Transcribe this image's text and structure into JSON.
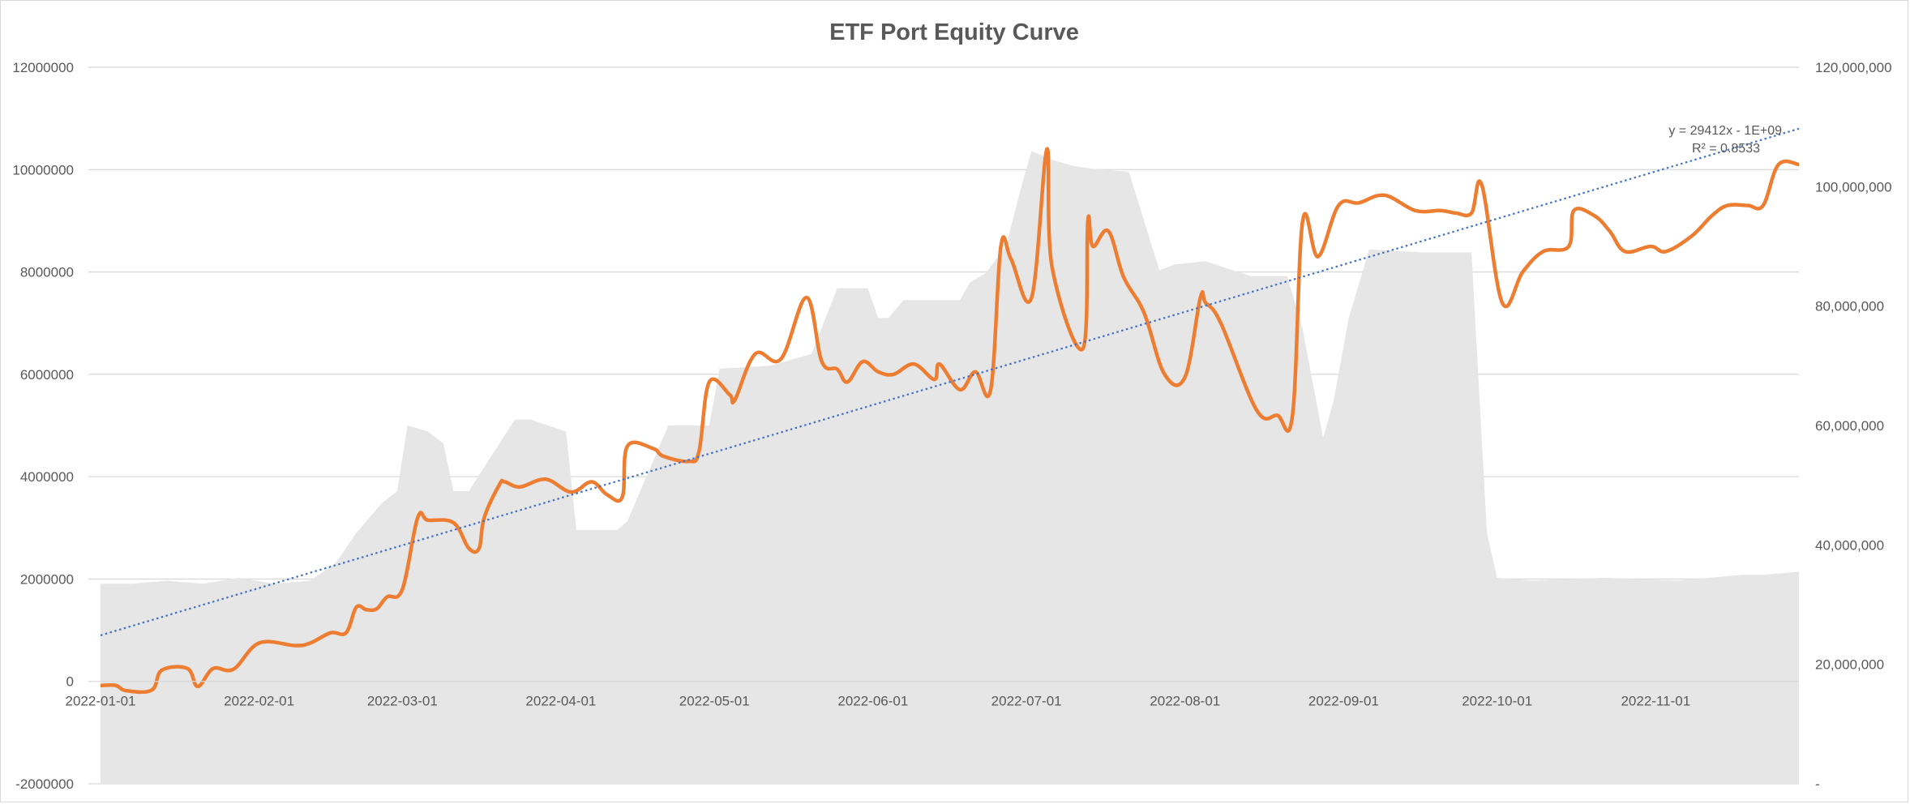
{
  "chart_data": {
    "type": "line",
    "title": "ETF Port Equity Curve",
    "xlabel": "",
    "ylabel": "",
    "x_tick_labels": [
      "2022-01-01",
      "2022-02-01",
      "2022-03-01",
      "2022-04-01",
      "2022-05-01",
      "2022-06-01",
      "2022-07-01",
      "2022-08-01",
      "2022-09-01",
      "2022-10-01",
      "2022-11-01"
    ],
    "x_range": [
      "2022-01-01",
      "2022-11-29"
    ],
    "left_axis": {
      "ylim": [
        -2000000,
        12000000
      ],
      "tick_labels": [
        "-2000000",
        "0",
        "2000000",
        "4000000",
        "6000000",
        "8000000",
        "10000000",
        "12000000"
      ],
      "ticks": [
        -2000000,
        0,
        2000000,
        4000000,
        6000000,
        8000000,
        10000000,
        12000000
      ]
    },
    "right_axis": {
      "ylim": [
        0,
        120000000
      ],
      "tick_labels": [
        "-",
        "20,000,000",
        "40,000,000",
        "60,000,000",
        "80,000,000",
        "100,000,000",
        "120,000,000"
      ],
      "ticks": [
        0,
        20000000,
        40000000,
        60000000,
        80000000,
        100000000,
        120000000
      ]
    },
    "grid": true,
    "legend": "none",
    "colors": {
      "equity": "#ed7d31",
      "area": "#e7e6e6",
      "trend": "#4472c4",
      "grid": "#d9d9d9",
      "text": "#595959"
    },
    "series": [
      {
        "type": "area",
        "axis": "right",
        "x": [
          "2022-01-01",
          "2022-01-07",
          "2022-01-14",
          "2022-01-21",
          "2022-01-28",
          "2022-02-04",
          "2022-02-11",
          "2022-02-16",
          "2022-02-20",
          "2022-02-23",
          "2022-02-25",
          "2022-02-28",
          "2022-03-02",
          "2022-03-06",
          "2022-03-09",
          "2022-03-11",
          "2022-03-14",
          "2022-03-23",
          "2022-03-26",
          "2022-04-02",
          "2022-04-04",
          "2022-04-12",
          "2022-04-14",
          "2022-04-22",
          "2022-04-30",
          "2022-05-02",
          "2022-05-12",
          "2022-05-20",
          "2022-05-25",
          "2022-05-31",
          "2022-06-02",
          "2022-06-04",
          "2022-06-07",
          "2022-06-18",
          "2022-06-20",
          "2022-06-23",
          "2022-06-27",
          "2022-06-30",
          "2022-07-02",
          "2022-07-06",
          "2022-07-10",
          "2022-07-14",
          "2022-07-21",
          "2022-07-27",
          "2022-07-30",
          "2022-08-05",
          "2022-08-14",
          "2022-08-21",
          "2022-08-24",
          "2022-08-28",
          "2022-08-30",
          "2022-09-02",
          "2022-09-06",
          "2022-09-16",
          "2022-09-26",
          "2022-09-29",
          "2022-10-01",
          "2022-10-08",
          "2022-10-22",
          "2022-11-05",
          "2022-11-18",
          "2022-11-22",
          "2022-11-29"
        ],
        "values": [
          33500000,
          33500000,
          34000000,
          33500000,
          34500000,
          33500000,
          34000000,
          37000000,
          42000000,
          45000000,
          47000000,
          49000000,
          60000000,
          59000000,
          57000000,
          49000000,
          49000000,
          61000000,
          61000000,
          59000000,
          42500000,
          42500000,
          44000000,
          60000000,
          60000000,
          69500000,
          70000000,
          72000000,
          83000000,
          83000000,
          78000000,
          78000000,
          81000000,
          81000000,
          84000000,
          85500000,
          90000000,
          100000000,
          106000000,
          104500000,
          103500000,
          103000000,
          102500000,
          86000000,
          87000000,
          87500000,
          85000000,
          85000000,
          76000000,
          58000000,
          64000000,
          78000000,
          89500000,
          89000000,
          89000000,
          42000000,
          34500000,
          34000000,
          34500000,
          34000000,
          35000000,
          35000000,
          35500000
        ]
      },
      {
        "type": "line",
        "axis": "left",
        "name": "",
        "x": [
          "2022-01-01",
          "2022-01-04",
          "2022-01-06",
          "2022-01-11",
          "2022-01-13",
          "2022-01-18",
          "2022-01-20",
          "2022-01-23",
          "2022-01-27",
          "2022-02-01",
          "2022-02-08",
          "2022-02-11",
          "2022-02-15",
          "2022-02-18",
          "2022-02-20",
          "2022-02-22",
          "2022-02-24",
          "2022-02-26",
          "2022-03-01",
          "2022-03-04",
          "2022-03-06",
          "2022-03-11",
          "2022-03-14",
          "2022-03-16",
          "2022-03-17",
          "2022-03-20",
          "2022-03-21",
          "2022-03-24",
          "2022-03-29",
          "2022-04-03",
          "2022-04-07",
          "2022-04-10",
          "2022-04-13",
          "2022-04-14",
          "2022-04-19",
          "2022-04-21",
          "2022-04-26",
          "2022-04-28",
          "2022-04-30",
          "2022-05-04",
          "2022-05-05",
          "2022-05-09",
          "2022-05-14",
          "2022-05-19",
          "2022-05-22",
          "2022-05-25",
          "2022-05-27",
          "2022-05-30",
          "2022-06-02",
          "2022-06-05",
          "2022-06-09",
          "2022-06-13",
          "2022-06-14",
          "2022-06-18",
          "2022-06-21",
          "2022-06-24",
          "2022-06-26",
          "2022-06-28",
          "2022-07-02",
          "2022-07-05",
          "2022-07-06",
          "2022-07-12",
          "2022-07-13",
          "2022-07-14",
          "2022-07-17",
          "2022-07-20",
          "2022-07-24",
          "2022-07-28",
          "2022-08-01",
          "2022-08-04",
          "2022-08-05",
          "2022-08-08",
          "2022-08-15",
          "2022-08-19",
          "2022-08-22",
          "2022-08-24",
          "2022-08-27",
          "2022-08-31",
          "2022-09-04",
          "2022-09-09",
          "2022-09-15",
          "2022-09-20",
          "2022-09-23",
          "2022-09-26",
          "2022-09-28",
          "2022-10-02",
          "2022-10-06",
          "2022-10-10",
          "2022-10-15",
          "2022-10-16",
          "2022-10-20",
          "2022-10-23",
          "2022-10-26",
          "2022-10-31",
          "2022-11-03",
          "2022-11-08",
          "2022-11-12",
          "2022-11-15",
          "2022-11-19",
          "2022-11-22",
          "2022-11-25",
          "2022-11-29"
        ],
        "values": [
          -80000,
          -80000,
          -180000,
          -170000,
          220000,
          250000,
          -100000,
          250000,
          240000,
          750000,
          700000,
          750000,
          950000,
          950000,
          1450000,
          1400000,
          1420000,
          1650000,
          1800000,
          3200000,
          3150000,
          3100000,
          2600000,
          2600000,
          3200000,
          3850000,
          3900000,
          3800000,
          3950000,
          3700000,
          3900000,
          3650000,
          3600000,
          4600000,
          4550000,
          4400000,
          4300000,
          4500000,
          5850000,
          5600000,
          5500000,
          6400000,
          6300000,
          7500000,
          6250000,
          6100000,
          5850000,
          6250000,
          6050000,
          6000000,
          6200000,
          5900000,
          6200000,
          5700000,
          6050000,
          5700000,
          8500000,
          8250000,
          7500000,
          10400000,
          8100000,
          6500000,
          9000000,
          8500000,
          8800000,
          7900000,
          7200000,
          6000000,
          5950000,
          7500000,
          7400000,
          7000000,
          5300000,
          5200000,
          5200000,
          9000000,
          8300000,
          9300000,
          9350000,
          9500000,
          9200000,
          9200000,
          9150000,
          9150000,
          9700000,
          7400000,
          8000000,
          8400000,
          8500000,
          9200000,
          9100000,
          8800000,
          8400000,
          8500000,
          8400000,
          8700000,
          9100000,
          9300000,
          9300000,
          9300000,
          10100000,
          10100000
        ]
      }
    ],
    "trendline": {
      "type": "linear",
      "equation": "y = 29412x - 1E+09",
      "r_squared": "R² = 0.8533",
      "start": [
        "2022-01-01",
        900000
      ],
      "end": [
        "2022-11-29",
        10800000
      ]
    }
  }
}
